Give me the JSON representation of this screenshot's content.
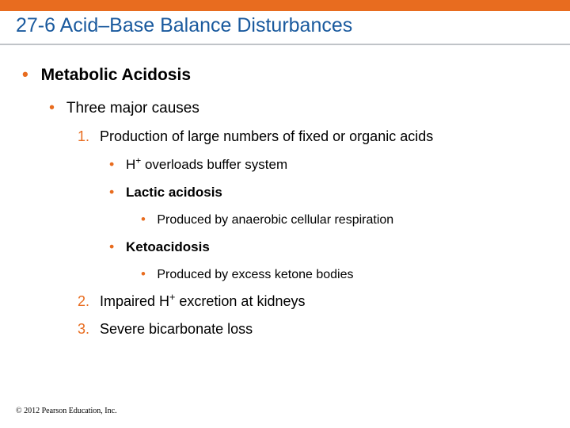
{
  "colors": {
    "accent": "#e86c1f",
    "title": "#1a5a9e",
    "underline": "#c0c4c8",
    "text": "#000000",
    "background": "#ffffff"
  },
  "title": "27-6 Acid–Base Balance Disturbances",
  "lvl0": "Metabolic Acidosis",
  "lvl1": "Three major causes",
  "item1": {
    "num": "1.",
    "text": "Production of large numbers of fixed or organic acids",
    "sub1_pre": "H",
    "sub1_sup": "+",
    "sub1_post": " overloads buffer system",
    "sub2": "Lactic acidosis",
    "sub2_detail": "Produced by anaerobic cellular respiration",
    "sub3": "Ketoacidosis",
    "sub3_detail": "Produced by excess ketone bodies"
  },
  "item2": {
    "num": "2.",
    "pre": "Impaired H",
    "sup": "+",
    "post": " excretion at kidneys"
  },
  "item3": {
    "num": "3.",
    "text": "Severe bicarbonate loss"
  },
  "footer": "© 2012 Pearson Education, Inc."
}
